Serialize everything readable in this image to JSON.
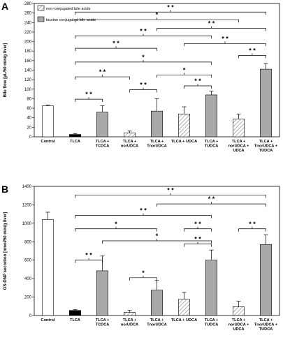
{
  "chart_data": [
    {
      "panel": "A",
      "type": "bar",
      "ylabel": "Bile flow [µL/50 min/g liver]",
      "ylim": [
        0,
        280
      ],
      "yticks": [
        0,
        20,
        40,
        60,
        80,
        100,
        120,
        140,
        160,
        180,
        200,
        220,
        240,
        260,
        280
      ],
      "legend": {
        "items": [
          {
            "label": "non-conjugated bile acids",
            "style": "hatched"
          },
          {
            "label": "taurine conjugated bile acids",
            "style": "gray"
          }
        ]
      },
      "categories": [
        [
          "Control"
        ],
        [
          "TLCA"
        ],
        [
          "TLCA +",
          "TCDCA"
        ],
        [
          "TLCA +",
          "norUDCA"
        ],
        [
          "TLCA +",
          "TnorUDCA"
        ],
        [
          "TLCA + UDCA"
        ],
        [
          "TLCA +",
          "TUDCA"
        ],
        [
          "TLCA +",
          "norUDCA +",
          "UDCA"
        ],
        [
          "TLCA +",
          "TnorUDCA +",
          "TUDCA"
        ]
      ],
      "styles": [
        "white",
        "black",
        "gray",
        "hatched",
        "gray",
        "hatched",
        "gray",
        "hatched",
        "gray"
      ],
      "values": [
        65,
        5,
        52,
        8,
        54,
        48,
        88,
        37,
        142
      ],
      "errors": [
        2,
        2,
        13,
        4,
        26,
        15,
        8,
        11,
        12
      ],
      "brackets": [
        {
          "from": 1,
          "to": 8,
          "level": 262,
          "label": "* *"
        },
        {
          "from": 1,
          "to": 7,
          "level": 246,
          "label": "*"
        },
        {
          "from": 4,
          "to": 8,
          "level": 228,
          "label": "* *"
        },
        {
          "from": 1,
          "to": 6,
          "level": 212,
          "label": "* *"
        },
        {
          "from": 1,
          "to": 4,
          "level": 186,
          "label": "* *"
        },
        {
          "from": 5,
          "to": 8,
          "level": 196,
          "label": "* *"
        },
        {
          "from": 7,
          "to": 8,
          "level": 171,
          "label": "* *"
        },
        {
          "from": 1,
          "to": 6,
          "level": 157,
          "label": "*"
        },
        {
          "from": 1,
          "to": 3,
          "level": 126,
          "label": "* *"
        },
        {
          "from": 4,
          "to": 6,
          "level": 130,
          "label": "*"
        },
        {
          "from": 3,
          "to": 4,
          "level": 99,
          "label": "* *"
        },
        {
          "from": 5,
          "to": 6,
          "level": 107,
          "label": "* *"
        },
        {
          "from": 1,
          "to": 2,
          "level": 79,
          "label": "* *"
        }
      ]
    },
    {
      "panel": "B",
      "type": "bar",
      "ylabel": "GS-DNP secretion [nmol/50 min/g liver]",
      "ylim": [
        0,
        1400
      ],
      "yticks": [
        0,
        200,
        400,
        600,
        800,
        1000,
        1200,
        1400
      ],
      "categories": [
        [
          "Control"
        ],
        [
          "TLCA"
        ],
        [
          "TLCA +",
          "TCDCA"
        ],
        [
          "TLCA +",
          "norUDCA"
        ],
        [
          "TLCA +",
          "TnorUDCA"
        ],
        [
          "TLCA + UDCA"
        ],
        [
          "TLCA +",
          "TUDCA"
        ],
        [
          "TLCA +",
          "norUDCA +",
          "UDCA"
        ],
        [
          "TLCA +",
          "TnorUDCA +",
          "TUDCA"
        ]
      ],
      "styles": [
        "white",
        "black",
        "gray",
        "hatched",
        "gray",
        "hatched",
        "gray",
        "hatched",
        "gray"
      ],
      "values": [
        1040,
        55,
        485,
        35,
        275,
        175,
        600,
        95,
        770
      ],
      "errors": [
        80,
        8,
        160,
        20,
        105,
        75,
        110,
        60,
        105
      ],
      "brackets": [
        {
          "from": 1,
          "to": 8,
          "level": 1305,
          "label": "* *"
        },
        {
          "from": 4,
          "to": 8,
          "level": 1210,
          "label": "* *"
        },
        {
          "from": 1,
          "to": 6,
          "level": 1085,
          "label": "* *"
        },
        {
          "from": 1,
          "to": 4,
          "level": 940,
          "label": "*"
        },
        {
          "from": 5,
          "to": 6,
          "level": 940,
          "label": "* *"
        },
        {
          "from": 7,
          "to": 8,
          "level": 940,
          "label": "* *"
        },
        {
          "from": 2,
          "to": 6,
          "level": 810,
          "label": "*"
        },
        {
          "from": 5,
          "to": 6,
          "level": 775,
          "label": "* *"
        },
        {
          "from": 1,
          "to": 2,
          "level": 600,
          "label": "* *"
        },
        {
          "from": 3,
          "to": 4,
          "level": 410,
          "label": "*"
        }
      ]
    }
  ],
  "panels": {
    "a": "A",
    "b": "B"
  }
}
